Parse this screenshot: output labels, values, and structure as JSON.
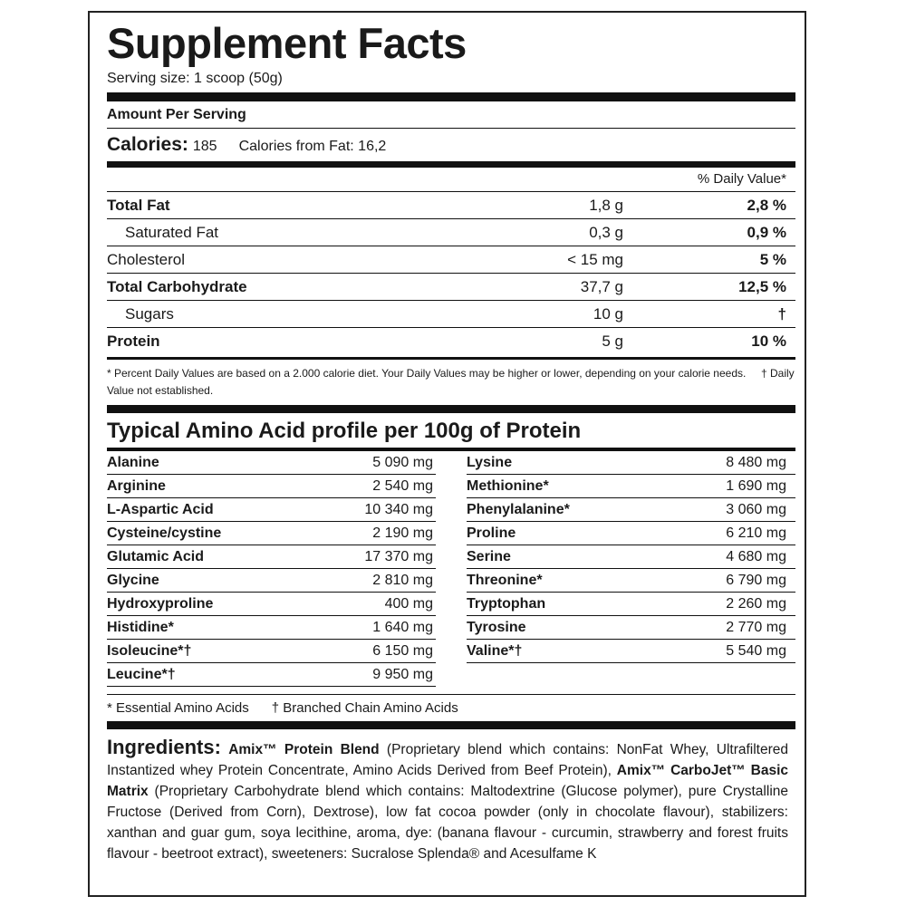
{
  "title": "Supplement Facts",
  "serving": "Serving size: 1 scoop (50g)",
  "amount_per_serving": "Amount Per Serving",
  "calories": {
    "label": "Calories:",
    "value": "185",
    "from_fat": "Calories from Fat: 16,2"
  },
  "dv_header": "% Daily Value*",
  "nutrients": [
    {
      "name": "Total Fat",
      "amount": "1,8 g",
      "dv": "2,8 %"
    },
    {
      "name": "Saturated Fat",
      "amount": "0,3 g",
      "dv": "0,9 %"
    },
    {
      "name": "Cholesterol",
      "amount": "< 15 mg",
      "dv": "5 %"
    },
    {
      "name": "Total Carbohydrate",
      "amount": "37,7 g",
      "dv": "12,5 %"
    },
    {
      "name": "Sugars",
      "amount": "10 g",
      "dv": "†"
    },
    {
      "name": "Protein",
      "amount": "5 g",
      "dv": "10 %"
    }
  ],
  "footnote_1": "* Percent Daily Values are based on a 2.000 calorie diet. Your Daily Values may be higher or lower, depending on your calorie needs.",
  "footnote_2": "† Daily Value not established.",
  "amino_title": "Typical Amino Acid profile per 100g of Protein",
  "amino_left": [
    {
      "name": "Alanine",
      "value": "5 090 mg"
    },
    {
      "name": "Arginine",
      "value": "2 540 mg"
    },
    {
      "name": "L-Aspartic Acid",
      "value": "10 340 mg"
    },
    {
      "name": "Cysteine/cystine",
      "value": "2 190 mg"
    },
    {
      "name": "Glutamic Acid",
      "value": "17 370 mg"
    },
    {
      "name": "Glycine",
      "value": "2 810 mg"
    },
    {
      "name": "Hydroxyproline",
      "value": "400 mg"
    },
    {
      "name": "Histidine*",
      "value": "1 640 mg"
    },
    {
      "name": "Isoleucine*†",
      "value": "6 150 mg"
    },
    {
      "name": "Leucine*†",
      "value": "9 950 mg"
    }
  ],
  "amino_right": [
    {
      "name": "Lysine",
      "value": "8 480 mg"
    },
    {
      "name": "Methionine*",
      "value": "1 690 mg"
    },
    {
      "name": "Phenylalanine*",
      "value": "3 060 mg"
    },
    {
      "name": "Proline",
      "value": "6 210 mg"
    },
    {
      "name": "Serine",
      "value": "4 680 mg"
    },
    {
      "name": "Threonine*",
      "value": "6 790 mg"
    },
    {
      "name": "Tryptophan",
      "value": "2 260 mg"
    },
    {
      "name": "Tyrosine",
      "value": "2 770 mg"
    },
    {
      "name": "Valine*†",
      "value": "5 540 mg"
    }
  ],
  "amino_foot_1": "* Essential Amino Acids",
  "amino_foot_2": "† Branched Chain Amino Acids",
  "ingredients": {
    "label": "Ingredients:",
    "p1_bold": "Amix™ Protein Blend",
    "p1": " (Proprietary blend which contains: NonFat Whey, Ultrafiltered Instantized whey Protein Concentrate, Amino Acids Derived from Beef Protein), ",
    "p2_bold": "Amix™ CarboJet™ Basic Matrix",
    "p2": " (Proprietary Carbohydrate blend which contains: Maltodextrine (Glucose polymer), pure Crystalline Fructose (Derived from Corn), Dextrose), low fat cocoa powder (only in chocolate flavour), stabilizers: xanthan and guar gum, soya lecithine, aroma, dye: (banana flavour - curcumin, strawberry and forest fruits flavour - beetroot extract), sweeteners: Sucralose Splenda® and Acesulfame K"
  }
}
